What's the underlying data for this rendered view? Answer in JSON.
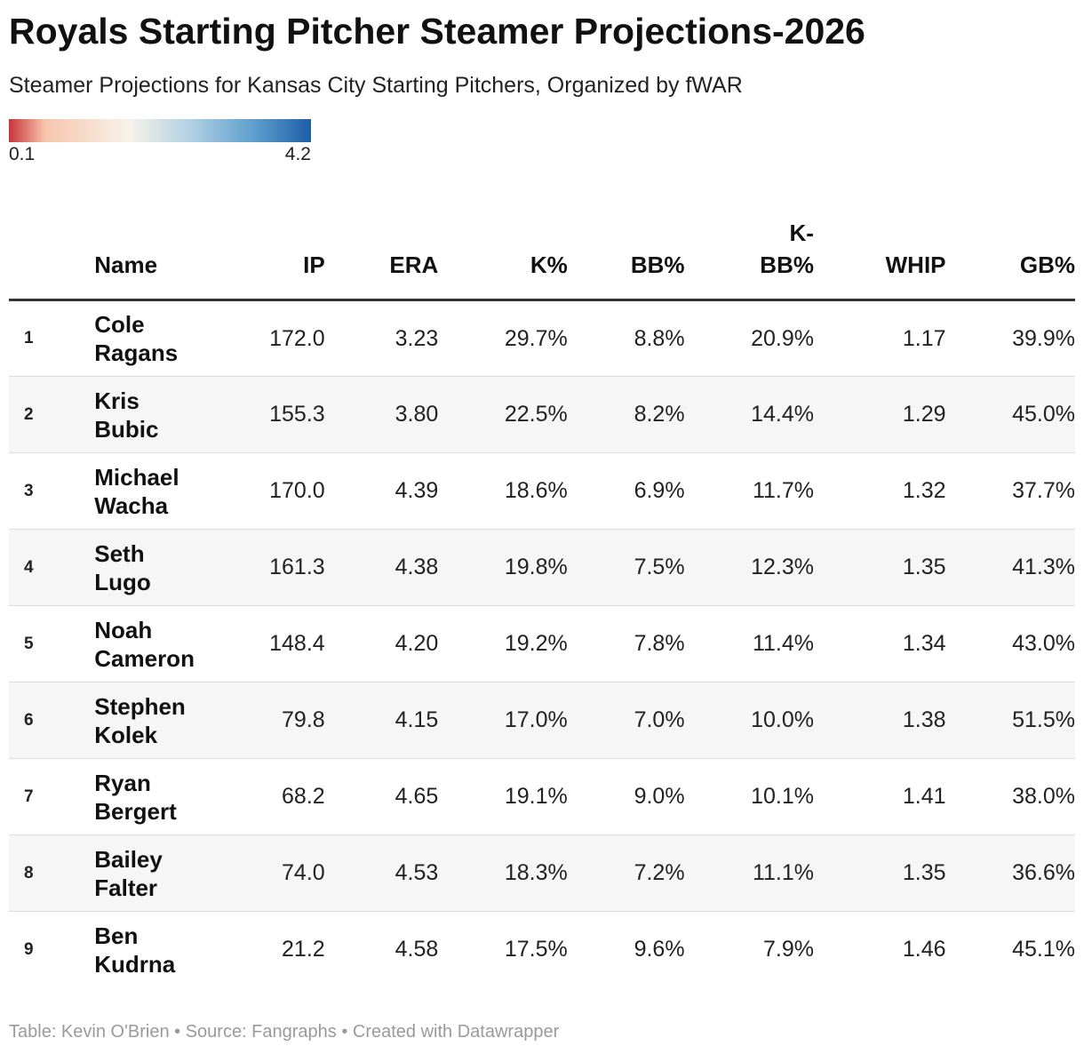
{
  "chart_data": {
    "type": "table",
    "title": "Royals Starting Pitcher Steamer Projections-2026",
    "subtitle": "Steamer Projections for Kansas City Starting Pitchers, Organized by fWAR",
    "legend": {
      "min_label": "0.1",
      "max_label": "4.2",
      "low_color": "#c8343a",
      "mid_color": "#f7f3ea",
      "high_color": "#1d5ea6"
    },
    "columns": {
      "rank": "",
      "name": "Name",
      "ip": "IP",
      "era": "ERA",
      "k_pct": "K%",
      "bb_pct": "BB%",
      "kbb_pct_top": "K-",
      "kbb_pct_bottom": "BB%",
      "whip": "WHIP",
      "gb_pct": "GB%"
    },
    "rows": [
      {
        "rank": "1",
        "first": "Cole",
        "last": "Ragans",
        "ip": "172.0",
        "era": "3.23",
        "k_pct": "29.7%",
        "bb_pct": "8.8%",
        "kbb_pct": "20.9%",
        "whip": "1.17",
        "gb_pct": "39.9%"
      },
      {
        "rank": "2",
        "first": "Kris",
        "last": "Bubic",
        "ip": "155.3",
        "era": "3.80",
        "k_pct": "22.5%",
        "bb_pct": "8.2%",
        "kbb_pct": "14.4%",
        "whip": "1.29",
        "gb_pct": "45.0%"
      },
      {
        "rank": "3",
        "first": "Michael",
        "last": "Wacha",
        "ip": "170.0",
        "era": "4.39",
        "k_pct": "18.6%",
        "bb_pct": "6.9%",
        "kbb_pct": "11.7%",
        "whip": "1.32",
        "gb_pct": "37.7%"
      },
      {
        "rank": "4",
        "first": "Seth",
        "last": "Lugo",
        "ip": "161.3",
        "era": "4.38",
        "k_pct": "19.8%",
        "bb_pct": "7.5%",
        "kbb_pct": "12.3%",
        "whip": "1.35",
        "gb_pct": "41.3%"
      },
      {
        "rank": "5",
        "first": "Noah",
        "last": "Cameron",
        "ip": "148.4",
        "era": "4.20",
        "k_pct": "19.2%",
        "bb_pct": "7.8%",
        "kbb_pct": "11.4%",
        "whip": "1.34",
        "gb_pct": "43.0%"
      },
      {
        "rank": "6",
        "first": "Stephen",
        "last": "Kolek",
        "ip": "79.8",
        "era": "4.15",
        "k_pct": "17.0%",
        "bb_pct": "7.0%",
        "kbb_pct": "10.0%",
        "whip": "1.38",
        "gb_pct": "51.5%"
      },
      {
        "rank": "7",
        "first": "Ryan",
        "last": "Bergert",
        "ip": "68.2",
        "era": "4.65",
        "k_pct": "19.1%",
        "bb_pct": "9.0%",
        "kbb_pct": "10.1%",
        "whip": "1.41",
        "gb_pct": "38.0%"
      },
      {
        "rank": "8",
        "first": "Bailey",
        "last": "Falter",
        "ip": "74.0",
        "era": "4.53",
        "k_pct": "18.3%",
        "bb_pct": "7.2%",
        "kbb_pct": "11.1%",
        "whip": "1.35",
        "gb_pct": "36.6%"
      },
      {
        "rank": "9",
        "first": "Ben",
        "last": "Kudrna",
        "ip": "21.2",
        "era": "4.58",
        "k_pct": "17.5%",
        "bb_pct": "9.6%",
        "kbb_pct": "7.9%",
        "whip": "1.46",
        "gb_pct": "45.1%"
      }
    ],
    "footer": "Table: Kevin O'Brien • Source: Fangraphs • Created with Datawrapper"
  }
}
